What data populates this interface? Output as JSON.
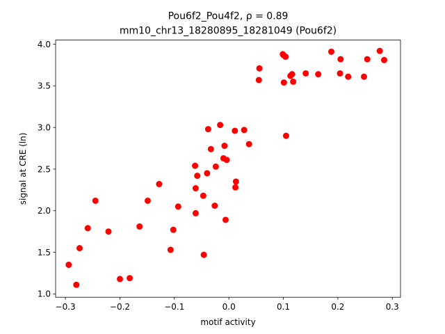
{
  "chart_data": {
    "type": "scatter",
    "title": "Pou6f2_Pou4f2, ρ = 0.89",
    "subtitle": "mm10_chr13_18280895_18281049 (Pou6f2)",
    "xlabel": "motif activity",
    "ylabel": "signal at CRE (ln)",
    "xlim": [
      -0.318,
      0.315
    ],
    "ylim": [
      0.96,
      4.05
    ],
    "xticks": [
      -0.3,
      -0.2,
      -0.1,
      0.0,
      0.1,
      0.2,
      0.3
    ],
    "xtick_labels": [
      "−0.3",
      "−0.2",
      "−0.1",
      "0.0",
      "0.1",
      "0.2",
      "0.3"
    ],
    "yticks": [
      1.0,
      1.5,
      2.0,
      2.5,
      3.0,
      3.5,
      4.0
    ],
    "ytick_labels": [
      "1.0",
      "1.5",
      "2.0",
      "2.5",
      "3.0",
      "3.5",
      "4.0"
    ],
    "grid": false,
    "marker_color": "#ff0000",
    "points": [
      {
        "x": -0.294,
        "y": 1.35
      },
      {
        "x": -0.28,
        "y": 1.11
      },
      {
        "x": -0.274,
        "y": 1.55
      },
      {
        "x": -0.259,
        "y": 1.79
      },
      {
        "x": -0.245,
        "y": 2.12
      },
      {
        "x": -0.221,
        "y": 1.75
      },
      {
        "x": -0.2,
        "y": 1.18
      },
      {
        "x": -0.182,
        "y": 1.19
      },
      {
        "x": -0.164,
        "y": 1.81
      },
      {
        "x": -0.149,
        "y": 2.12
      },
      {
        "x": -0.128,
        "y": 2.32
      },
      {
        "x": -0.107,
        "y": 1.53
      },
      {
        "x": -0.102,
        "y": 1.77
      },
      {
        "x": -0.093,
        "y": 2.05
      },
      {
        "x": -0.062,
        "y": 2.54
      },
      {
        "x": -0.061,
        "y": 2.27
      },
      {
        "x": -0.061,
        "y": 1.97
      },
      {
        "x": -0.058,
        "y": 2.42
      },
      {
        "x": -0.047,
        "y": 2.18
      },
      {
        "x": -0.046,
        "y": 1.47
      },
      {
        "x": -0.04,
        "y": 2.45
      },
      {
        "x": -0.038,
        "y": 2.98
      },
      {
        "x": -0.033,
        "y": 2.74
      },
      {
        "x": -0.026,
        "y": 2.06
      },
      {
        "x": -0.024,
        "y": 2.53
      },
      {
        "x": -0.016,
        "y": 3.03
      },
      {
        "x": -0.01,
        "y": 2.63
      },
      {
        "x": -0.008,
        "y": 2.78
      },
      {
        "x": -0.006,
        "y": 1.89
      },
      {
        "x": -0.004,
        "y": 2.61
      },
      {
        "x": 0.011,
        "y": 2.96
      },
      {
        "x": 0.012,
        "y": 2.28
      },
      {
        "x": 0.013,
        "y": 2.35
      },
      {
        "x": 0.028,
        "y": 2.97
      },
      {
        "x": 0.037,
        "y": 2.8
      },
      {
        "x": 0.055,
        "y": 3.57
      },
      {
        "x": 0.056,
        "y": 3.71
      },
      {
        "x": 0.099,
        "y": 3.88
      },
      {
        "x": 0.1,
        "y": 3.87
      },
      {
        "x": 0.101,
        "y": 3.54
      },
      {
        "x": 0.104,
        "y": 3.85
      },
      {
        "x": 0.105,
        "y": 2.9
      },
      {
        "x": 0.113,
        "y": 3.62
      },
      {
        "x": 0.116,
        "y": 3.64
      },
      {
        "x": 0.118,
        "y": 3.55
      },
      {
        "x": 0.141,
        "y": 3.65
      },
      {
        "x": 0.164,
        "y": 3.64
      },
      {
        "x": 0.188,
        "y": 3.91
      },
      {
        "x": 0.204,
        "y": 3.65
      },
      {
        "x": 0.205,
        "y": 3.82
      },
      {
        "x": 0.219,
        "y": 3.61
      },
      {
        "x": 0.248,
        "y": 3.61
      },
      {
        "x": 0.254,
        "y": 3.82
      },
      {
        "x": 0.277,
        "y": 3.92
      },
      {
        "x": 0.285,
        "y": 3.81
      }
    ]
  }
}
